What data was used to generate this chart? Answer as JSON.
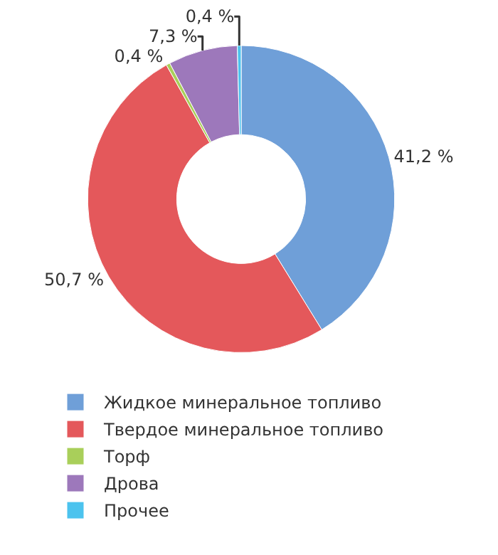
{
  "chart_data": {
    "type": "donut",
    "categories": [
      "Жидкое минеральное топливо",
      "Твердое минеральное топливо",
      "Торф",
      "Дрова",
      "Прочее"
    ],
    "values": [
      41.2,
      50.7,
      0.4,
      7.3,
      0.4
    ],
    "value_labels": [
      "41,2 %",
      "50,7 %",
      "0,4 %",
      "7,3 %",
      "0,4 %"
    ],
    "colors": [
      "#6f9fd8",
      "#e4585b",
      "#a9cf5a",
      "#9d78bb",
      "#4cc3ee"
    ],
    "legend": "bottom"
  }
}
